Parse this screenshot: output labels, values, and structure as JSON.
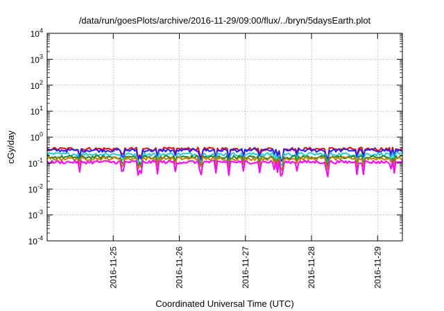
{
  "chart_data": {
    "type": "line",
    "title": "/data/run/goesPlots/archive/2016-11-29/09:00/flux/../bryn/5daysEarth.plot",
    "xlabel": "Coordinated Universal Time (UTC)",
    "ylabel": "cGy/day",
    "yscale": "log",
    "ylim": [
      0.0001,
      10000
    ],
    "xlim": [
      "2016-11-24 00:00",
      "2016-11-29 09:00"
    ],
    "grid": true,
    "x_ticks": [
      "2016-11-25",
      "2016-11-26",
      "2016-11-27",
      "2016-11-28",
      "2016-11-29"
    ],
    "y_ticks": [
      {
        "base": "10",
        "exp": "-4"
      },
      {
        "base": "10",
        "exp": "-3"
      },
      {
        "base": "10",
        "exp": "-2"
      },
      {
        "base": "10",
        "exp": "-1"
      },
      {
        "base": "10",
        "exp": "0"
      },
      {
        "base": "10",
        "exp": "1"
      },
      {
        "base": "10",
        "exp": "2"
      },
      {
        "base": "10",
        "exp": "3"
      },
      {
        "base": "10",
        "exp": "4"
      }
    ],
    "series": [
      {
        "color": "#ff0000",
        "level": 0.35
      },
      {
        "color": "#2020ff",
        "level": 0.31
      },
      {
        "color": "#20d0d0",
        "level": 0.22
      },
      {
        "color": "#208020",
        "level": 0.17
      },
      {
        "color": "#c08000",
        "level": 0.15
      },
      {
        "color": "#ff00ff",
        "level": 0.11
      }
    ]
  }
}
